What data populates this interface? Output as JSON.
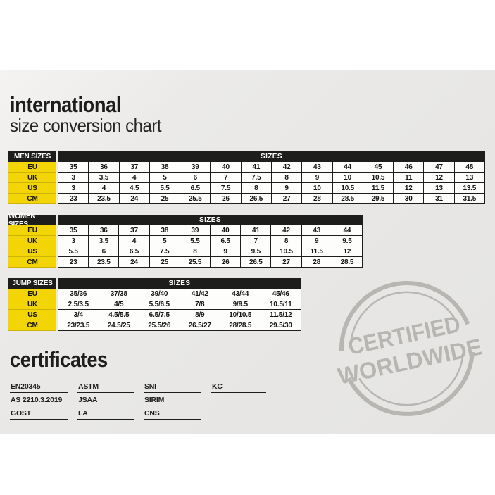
{
  "header": {
    "title": "international",
    "subtitle": "size conversion chart"
  },
  "colors": {
    "accent_yellow": "#f3d505",
    "table_black": "#1d1d1b",
    "card_background": "#e8e7e5",
    "stamp_gray": "#b2b0ad"
  },
  "chart_data": [
    {
      "type": "table",
      "title": "MEN SIZES",
      "columns_header": "SIZES",
      "rows": [
        {
          "label": "EU",
          "values": [
            "35",
            "36",
            "37",
            "38",
            "39",
            "40",
            "41",
            "42",
            "43",
            "44",
            "45",
            "46",
            "47",
            "48"
          ]
        },
        {
          "label": "UK",
          "values": [
            "3",
            "3.5",
            "4",
            "5",
            "6",
            "7",
            "7.5",
            "8",
            "9",
            "10",
            "10.5",
            "11",
            "12",
            "13"
          ]
        },
        {
          "label": "US",
          "values": [
            "3",
            "4",
            "4.5",
            "5.5",
            "6.5",
            "7.5",
            "8",
            "9",
            "10",
            "10.5",
            "11.5",
            "12",
            "13",
            "13.5"
          ]
        },
        {
          "label": "CM",
          "values": [
            "23",
            "23.5",
            "24",
            "25",
            "25.5",
            "26",
            "26.5",
            "27",
            "28",
            "28.5",
            "29.5",
            "30",
            "31",
            "31.5"
          ]
        }
      ]
    },
    {
      "type": "table",
      "title": "WOMEN SIZES",
      "columns_header": "SIZES",
      "rows": [
        {
          "label": "EU",
          "values": [
            "35",
            "36",
            "37",
            "38",
            "39",
            "40",
            "41",
            "42",
            "43",
            "44"
          ]
        },
        {
          "label": "UK",
          "values": [
            "3",
            "3.5",
            "4",
            "5",
            "5.5",
            "6.5",
            "7",
            "8",
            "9",
            "9.5"
          ]
        },
        {
          "label": "US",
          "values": [
            "5.5",
            "6",
            "6.5",
            "7.5",
            "8",
            "9",
            "9.5",
            "10.5",
            "11.5",
            "12"
          ]
        },
        {
          "label": "CM",
          "values": [
            "23",
            "23.5",
            "24",
            "25",
            "25.5",
            "26",
            "26.5",
            "27",
            "28",
            "28.5"
          ]
        }
      ]
    },
    {
      "type": "table",
      "title": "JUMP SIZES",
      "columns_header": "SIZES",
      "rows": [
        {
          "label": "EU",
          "values": [
            "35/36",
            "37/38",
            "39/40",
            "41/42",
            "43/44",
            "45/46"
          ]
        },
        {
          "label": "UK",
          "values": [
            "2.5/3.5",
            "4/5",
            "5.5/6.5",
            "7/8",
            "9/9.5",
            "10.5/11"
          ]
        },
        {
          "label": "US",
          "values": [
            "3/4",
            "4.5/5.5",
            "6.5/7.5",
            "8/9",
            "10/10.5",
            "11.5/12"
          ]
        },
        {
          "label": "CM",
          "values": [
            "23/23.5",
            "24.5/25",
            "25.5/26",
            "26.5/27",
            "28/28.5",
            "29.5/30"
          ]
        }
      ]
    }
  ],
  "certificates": {
    "title": "certificates",
    "columns": [
      [
        "EN20345",
        "AS 2210.3.2019",
        "GOST"
      ],
      [
        "ASTM",
        "JSAA",
        "LA"
      ],
      [
        "SNI",
        "SIRIM",
        "CNS"
      ],
      [
        "KC"
      ]
    ]
  },
  "stamp": {
    "line1": "CERTIFIED",
    "line2": "WORLDWIDE"
  }
}
